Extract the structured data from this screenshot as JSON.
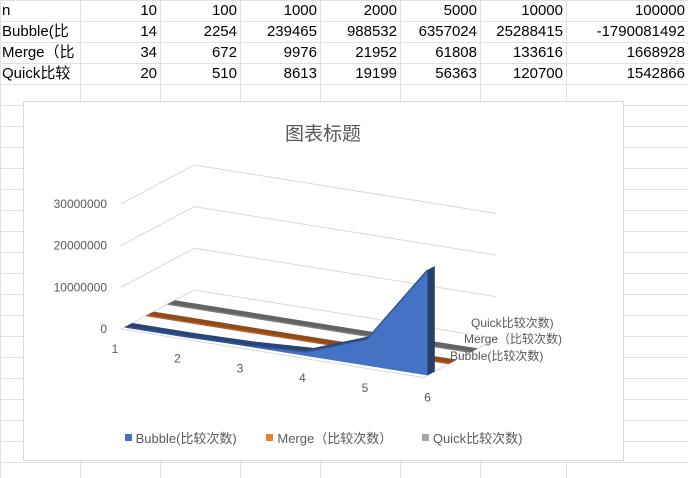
{
  "sheet": {
    "rows": [
      [
        "n",
        "10",
        "100",
        "1000",
        "2000",
        "5000",
        "10000",
        "100000"
      ],
      [
        "Bubble(比",
        "14",
        "2254",
        "239465",
        "988532",
        "6357024",
        "25288415",
        "-1790081492"
      ],
      [
        "Merge（比",
        "34",
        "672",
        "9976",
        "21952",
        "61808",
        "133616",
        "1668928"
      ],
      [
        "Quick比较",
        "20",
        "510",
        "8613",
        "19199",
        "56363",
        "120700",
        "1542866"
      ]
    ]
  },
  "chart_data": {
    "type": "area",
    "subtype": "3d-area",
    "title": "图表标题",
    "categories": [
      "1",
      "2",
      "3",
      "4",
      "5",
      "6"
    ],
    "yticks": [
      "0",
      "10000000",
      "20000000",
      "30000000"
    ],
    "ylim": [
      0,
      30000000
    ],
    "series": [
      {
        "name": "Bubble(比较次数)",
        "color": "#4472c4",
        "values": [
          14,
          2254,
          239465,
          988532,
          6357024,
          25288415
        ]
      },
      {
        "name": "Merge（比较次数）",
        "color": "#ed7d31",
        "values": [
          34,
          672,
          9976,
          21952,
          61808,
          133616
        ]
      },
      {
        "name": "Quick比较次数)",
        "color": "#a5a5a5",
        "values": [
          20,
          510,
          8613,
          19199,
          56363,
          120700
        ]
      }
    ],
    "depth_labels": [
      "Quick比较次数)",
      "Merge（比较次数)",
      "Bubble(比较次数)"
    ],
    "legend": [
      {
        "label": "Bubble(比较次数)",
        "color": "#4472c4"
      },
      {
        "label": "Merge（比较次数）",
        "color": "#ed7d31"
      },
      {
        "label": "Quick比较次数)",
        "color": "#a5a5a5"
      }
    ],
    "legend_position": "bottom",
    "grid": true
  }
}
